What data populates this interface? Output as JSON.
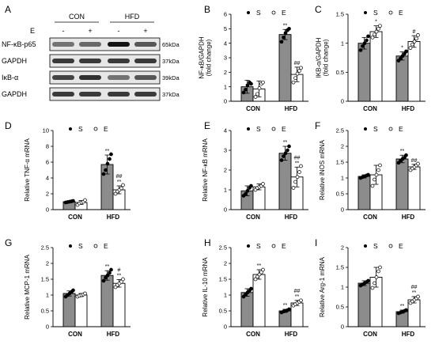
{
  "panel_a": {
    "letter": "A",
    "groups": [
      "CON",
      "HFD"
    ],
    "treatment_label": "E",
    "treatment_signs": [
      "-",
      "+",
      "-",
      "+"
    ],
    "rows": [
      {
        "name": "NF-κB-p65",
        "kda": "65kDa",
        "bands": [
          0.45,
          0.5,
          0.95,
          0.6
        ]
      },
      {
        "name": "GAPDH",
        "kda": "37kDa",
        "bands": [
          0.75,
          0.75,
          0.75,
          0.75
        ]
      },
      {
        "name": "IκB-α",
        "kda": "39kDa",
        "bands": [
          0.7,
          0.8,
          0.45,
          0.6
        ]
      },
      {
        "name": "GAPDH",
        "kda": "37kDa",
        "bands": [
          0.75,
          0.75,
          0.75,
          0.75
        ]
      }
    ]
  },
  "legend": {
    "s_label": "S",
    "e_label": "E"
  },
  "colors": {
    "s_bar": "#8c8c8c",
    "e_bar": "#ffffff",
    "outline": "#000000"
  },
  "chart_data": [
    {
      "panel": "B",
      "type": "bar",
      "ylabel_lines": [
        "NF-κB/GAPDH",
        "(fold change)"
      ],
      "categories": [
        "CON",
        "HFD"
      ],
      "ylim": [
        0,
        6
      ],
      "yticks": [
        "0",
        "1",
        "2",
        "3",
        "4",
        "5",
        "6"
      ],
      "series": [
        {
          "name": "S",
          "values": [
            1.0,
            4.6
          ],
          "errors": [
            0.45,
            0.35
          ],
          "points": [
            [
              0.6,
              0.8,
              1.1,
              1.3,
              1.2
            ],
            [
              4.1,
              4.4,
              4.7,
              4.9,
              5.0
            ]
          ]
        },
        {
          "name": "E",
          "values": [
            0.85,
            1.85
          ],
          "errors": [
            0.55,
            0.5
          ],
          "points": [
            [
              0.3,
              0.5,
              0.9,
              1.2,
              1.3
            ],
            [
              1.3,
              1.6,
              1.9,
              2.1,
              2.3
            ]
          ]
        }
      ],
      "sig_s": [
        "",
        "**"
      ],
      "sig_e": [
        "",
        "##"
      ]
    },
    {
      "panel": "C",
      "type": "bar",
      "ylabel_lines": [
        "IKB-α/GAPDH",
        "(fold change)"
      ],
      "categories": [
        "CON",
        "HFD"
      ],
      "ylim": [
        0,
        1.5
      ],
      "yticks": [
        "0",
        "0.5",
        "1",
        "1.5"
      ],
      "series": [
        {
          "name": "S",
          "values": [
            1.0,
            0.78
          ],
          "errors": [
            0.1,
            0.07
          ],
          "points": [
            [
              0.88,
              0.95,
              1.0,
              1.05,
              1.12
            ],
            [
              0.7,
              0.74,
              0.78,
              0.82,
              0.86
            ]
          ]
        },
        {
          "name": "E",
          "values": [
            1.2,
            1.03
          ],
          "errors": [
            0.1,
            0.1
          ],
          "points": [
            [
              1.1,
              1.15,
              1.2,
              1.25,
              1.3
            ],
            [
              0.92,
              0.98,
              1.03,
              1.08,
              1.14
            ]
          ]
        }
      ],
      "sig_s": [
        "",
        "*"
      ],
      "sig_e": [
        "*",
        "#"
      ]
    },
    {
      "panel": "D",
      "type": "bar",
      "ylabel_lines": [
        "Relative TNF-α mRNA"
      ],
      "categories": [
        "CON",
        "HFD"
      ],
      "ylim": [
        0,
        10
      ],
      "yticks": [
        "0",
        "2",
        "4",
        "6",
        "8",
        "10"
      ],
      "series": [
        {
          "name": "S",
          "values": [
            1.0,
            5.7
          ],
          "errors": [
            0.1,
            1.2
          ],
          "points": [
            [
              0.9,
              0.95,
              1.0,
              1.05,
              1.1
            ],
            [
              4.5,
              5.0,
              5.8,
              6.4,
              7.0
            ]
          ]
        },
        {
          "name": "E",
          "values": [
            0.9,
            2.5
          ],
          "errors": [
            0.25,
            0.5
          ],
          "points": [
            [
              0.6,
              0.8,
              0.9,
              1.0,
              1.2
            ],
            [
              2.0,
              2.3,
              2.5,
              2.7,
              3.1
            ]
          ]
        }
      ],
      "sig_s": [
        "",
        "**"
      ],
      "sig_e": [
        "",
        "##\n**"
      ]
    },
    {
      "panel": "E",
      "type": "bar",
      "ylabel_lines": [
        "Relative NF-κB mRNA"
      ],
      "categories": [
        "CON",
        "HFD"
      ],
      "ylim": [
        0,
        4
      ],
      "yticks": [
        "0",
        "1",
        "2",
        "3",
        "4"
      ],
      "series": [
        {
          "name": "S",
          "values": [
            0.95,
            2.85
          ],
          "errors": [
            0.25,
            0.35
          ],
          "points": [
            [
              0.7,
              0.8,
              0.95,
              1.1,
              1.2
            ],
            [
              2.5,
              2.7,
              2.85,
              3.0,
              3.2
            ]
          ]
        },
        {
          "name": "E",
          "values": [
            1.15,
            1.65
          ],
          "errors": [
            0.15,
            0.5
          ],
          "points": [
            [
              1.0,
              1.1,
              1.15,
              1.2,
              1.3
            ],
            [
              1.1,
              1.4,
              1.65,
              1.9,
              2.2
            ]
          ]
        }
      ],
      "sig_s": [
        "",
        "**"
      ],
      "sig_e": [
        "",
        "##\n**"
      ]
    },
    {
      "panel": "F",
      "type": "bar",
      "ylabel_lines": [
        "Relative iNOS mRNA"
      ],
      "categories": [
        "CON",
        "HFD"
      ],
      "ylim": [
        0,
        2.5
      ],
      "yticks": [
        "0",
        "0.5",
        "1",
        "1.5",
        "2",
        "2.5"
      ],
      "series": [
        {
          "name": "S",
          "values": [
            1.05,
            1.6
          ],
          "errors": [
            0.05,
            0.12
          ],
          "points": [
            [
              1.0,
              1.03,
              1.05,
              1.08,
              1.1
            ],
            [
              1.48,
              1.55,
              1.6,
              1.65,
              1.72
            ]
          ]
        },
        {
          "name": "E",
          "values": [
            1.1,
            1.35
          ],
          "errors": [
            0.3,
            0.08
          ],
          "points": [
            [
              0.75,
              0.95,
              1.1,
              1.25,
              1.4
            ],
            [
              1.25,
              1.3,
              1.35,
              1.4,
              1.45
            ]
          ]
        }
      ],
      "sig_s": [
        "",
        "**"
      ],
      "sig_e": [
        "",
        "##"
      ]
    },
    {
      "panel": "G",
      "type": "bar",
      "ylabel_lines": [
        "Relative MCP-1 mRNA"
      ],
      "categories": [
        "CON",
        "HFD"
      ],
      "ylim": [
        0,
        2.5
      ],
      "yticks": [
        "0",
        "0.5",
        "1",
        "1.5",
        "2",
        "2.5"
      ],
      "series": [
        {
          "name": "S",
          "values": [
            1.05,
            1.62
          ],
          "errors": [
            0.08,
            0.15
          ],
          "points": [
            [
              0.95,
              1.0,
              1.05,
              1.1,
              1.15
            ],
            [
              1.45,
              1.55,
              1.62,
              1.7,
              1.8
            ]
          ]
        },
        {
          "name": "E",
          "values": [
            1.0,
            1.37
          ],
          "errors": [
            0.05,
            0.12
          ],
          "points": [
            [
              0.95,
              0.98,
              1.0,
              1.02,
              1.05
            ],
            [
              1.25,
              1.32,
              1.37,
              1.42,
              1.5
            ]
          ]
        }
      ],
      "sig_s": [
        "",
        "**"
      ],
      "sig_e": [
        "",
        "#\n**"
      ]
    },
    {
      "panel": "H",
      "type": "bar",
      "ylabel_lines": [
        "Relative IL-10 mRNA"
      ],
      "categories": [
        "CON",
        "HFD"
      ],
      "ylim": [
        0,
        2.5
      ],
      "yticks": [
        "0",
        "0.5",
        "1",
        "1.5",
        "2",
        "2.5"
      ],
      "series": [
        {
          "name": "S",
          "values": [
            1.08,
            0.5
          ],
          "errors": [
            0.12,
            0.05
          ],
          "points": [
            [
              0.95,
              1.02,
              1.08,
              1.14,
              1.2
            ],
            [
              0.45,
              0.48,
              0.5,
              0.52,
              0.55
            ]
          ]
        },
        {
          "name": "E",
          "values": [
            1.65,
            0.75
          ],
          "errors": [
            0.15,
            0.08
          ],
          "points": [
            [
              1.5,
              1.58,
              1.65,
              1.72,
              1.8
            ],
            [
              0.67,
              0.71,
              0.75,
              0.79,
              0.83
            ]
          ]
        }
      ],
      "sig_s": [
        "",
        "**"
      ],
      "sig_e": [
        "**",
        "##\n**"
      ]
    },
    {
      "panel": "I",
      "type": "bar",
      "ylabel_lines": [
        "Relative Arg-1 mRNA"
      ],
      "categories": [
        "CON",
        "HFD"
      ],
      "ylim": [
        0,
        2
      ],
      "yticks": [
        "0",
        "0.5",
        "1",
        "1.5",
        "2"
      ],
      "series": [
        {
          "name": "S",
          "values": [
            1.1,
            0.38
          ],
          "errors": [
            0.06,
            0.04
          ],
          "points": [
            [
              1.04,
              1.07,
              1.1,
              1.13,
              1.16
            ],
            [
              0.34,
              0.36,
              0.38,
              0.4,
              0.42
            ]
          ]
        },
        {
          "name": "E",
          "values": [
            1.25,
            0.68
          ],
          "errors": [
            0.25,
            0.08
          ],
          "points": [
            [
              0.98,
              1.1,
              1.25,
              1.4,
              1.5
            ],
            [
              0.6,
              0.64,
              0.68,
              0.72,
              0.76
            ]
          ]
        }
      ],
      "sig_s": [
        "",
        "**"
      ],
      "sig_e": [
        "",
        "##\n**"
      ]
    }
  ]
}
